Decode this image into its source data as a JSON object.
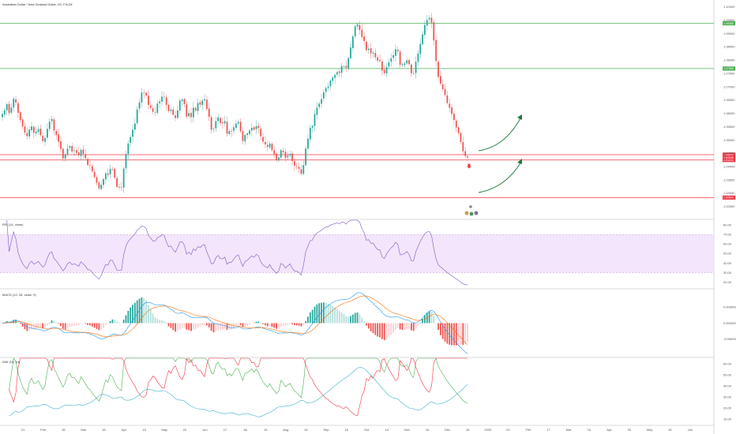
{
  "chart_data": {
    "type": "candlestick-with-indicators",
    "symbol_title": "Australian Dollar / New Zealand Dollar, 1D, FXCM",
    "x_ticks": [
      "21",
      "Feb",
      "18",
      "Mar",
      "18",
      "Apr",
      "15",
      "May",
      "20",
      "Jun",
      "17",
      "Jul",
      "15",
      "Aug",
      "19",
      "Sep",
      "16",
      "Oct",
      "14",
      "Nov",
      "18",
      "Dec",
      "16",
      "2020",
      "20",
      "Feb",
      "17",
      "Mar",
      "16",
      "Apr",
      "20",
      "May",
      "18",
      "Jun"
    ],
    "price_pane": {
      "ylim": [
        1.0205,
        1.102
      ],
      "y_ticks": [
        1.025,
        1.03,
        1.035,
        1.04,
        1.045,
        1.05,
        1.055,
        1.06,
        1.065,
        1.07,
        1.075,
        1.08,
        1.085,
        1.09,
        1.095,
        1.1
      ],
      "horizontal_levels": [
        {
          "value": 1.09385,
          "color": "#4caf50",
          "label": "1.09385"
        },
        {
          "value": 1.07685,
          "color": "#4caf50",
          "label": "1.07685"
        },
        {
          "value": 1.0445,
          "color": "#f23645",
          "label": "1.04450"
        },
        {
          "value": 1.0425,
          "color": "#f23645",
          "label": "1.04250"
        },
        {
          "value": 1.0284,
          "color": "#f23645",
          "label": "1.02840"
        }
      ],
      "last_price": {
        "value": 1.04345,
        "label": "1.04345"
      },
      "closes": [
        1.0598,
        1.0612,
        1.0635,
        1.0601,
        1.0622,
        1.0655,
        1.0641,
        1.0602,
        1.0575,
        1.0551,
        1.0528,
        1.0515,
        1.0539,
        1.0551,
        1.0527,
        1.0532,
        1.0541,
        1.0518,
        1.0496,
        1.0508,
        1.0542,
        1.0569,
        1.0579,
        1.0536,
        1.0519,
        1.0494,
        1.0467,
        1.0431,
        1.0446,
        1.0468,
        1.0477,
        1.0456,
        1.0461,
        1.0452,
        1.0443,
        1.0463,
        1.0448,
        1.0432,
        1.0406,
        1.0404,
        1.0382,
        1.0361,
        1.0339,
        1.0319,
        1.0332,
        1.0353,
        1.0375,
        1.0369,
        1.0391,
        1.0389,
        1.0359,
        1.0324,
        1.0322,
        1.0322,
        1.0393,
        1.0447,
        1.0487,
        1.0511,
        1.0539,
        1.0562,
        1.0615,
        1.0642,
        1.0678,
        1.0676,
        1.0667,
        1.0632,
        1.0621,
        1.0606,
        1.0605,
        1.0637,
        1.0645,
        1.0663,
        1.0661,
        1.0632,
        1.0609,
        1.0614,
        1.0595,
        1.0583,
        1.0611,
        1.0649,
        1.0652,
        1.0635,
        1.0588,
        1.0601,
        1.0586,
        1.0621,
        1.0611,
        1.0639,
        1.0633,
        1.0648,
        1.0653,
        1.0617,
        1.0587,
        1.0539,
        1.0542,
        1.0571,
        1.0585,
        1.0564,
        1.0563,
        1.0571,
        1.0524,
        1.0534,
        1.0533,
        1.0548,
        1.0562,
        1.0568,
        1.0533,
        1.0497,
        1.0519,
        1.0525,
        1.0536,
        1.0546,
        1.0539,
        1.0552,
        1.0545,
        1.0514,
        1.0494,
        1.0484,
        1.0475,
        1.0487,
        1.0462,
        1.0446,
        1.0426,
        1.0435,
        1.0462,
        1.0454,
        1.0433,
        1.0441,
        1.0448,
        1.0421,
        1.0404,
        1.0401,
        1.0392,
        1.0373,
        1.0406,
        1.0468,
        1.0505,
        1.0546,
        1.0553,
        1.0597,
        1.0621,
        1.0637,
        1.0654,
        1.0679,
        1.0695,
        1.0701,
        1.0723,
        1.0735,
        1.0745,
        1.0755,
        1.0752,
        1.0778,
        1.0777,
        1.0772,
        1.0808,
        1.0848,
        1.0889,
        1.0927,
        1.0935,
        1.0913,
        1.0887,
        1.0872,
        1.0838,
        1.0843,
        1.0826,
        1.0828,
        1.0811,
        1.0798,
        1.0796,
        1.0761,
        1.0751,
        1.0774,
        1.0792,
        1.0807,
        1.0819,
        1.0841,
        1.0833,
        1.0782,
        1.0784,
        1.0788,
        1.0799,
        1.0785,
        1.0751,
        1.0751,
        1.0794,
        1.0825,
        1.0861,
        1.0897,
        1.0932,
        1.0951,
        1.0959,
        1.0941,
        1.0874,
        1.0797,
        1.0737,
        1.0712,
        1.0691,
        1.0669,
        1.0639,
        1.0621,
        1.0598,
        1.0575,
        1.0547,
        1.0526,
        1.0493,
        1.0458,
        1.044,
        1.0434
      ]
    },
    "rsi": {
      "title": "RSI (14, close)",
      "ylim": [
        14,
        85
      ],
      "y_ticks": [
        20,
        30,
        40,
        50,
        60,
        70,
        80
      ],
      "band": [
        30,
        70
      ]
    },
    "macd": {
      "title": "MACD (12, 26, close, 9)",
      "y_ticks": [
        0.005,
        0,
        -0.005
      ]
    },
    "dmi": {
      "title": "DMI (14, 14)",
      "ylim": [
        5,
        65
      ],
      "y_ticks": [
        10,
        20,
        30,
        40,
        50,
        60
      ]
    },
    "annotations": [
      "projection-arrow-upper",
      "projection-arrow-lower",
      "event-markers"
    ]
  }
}
